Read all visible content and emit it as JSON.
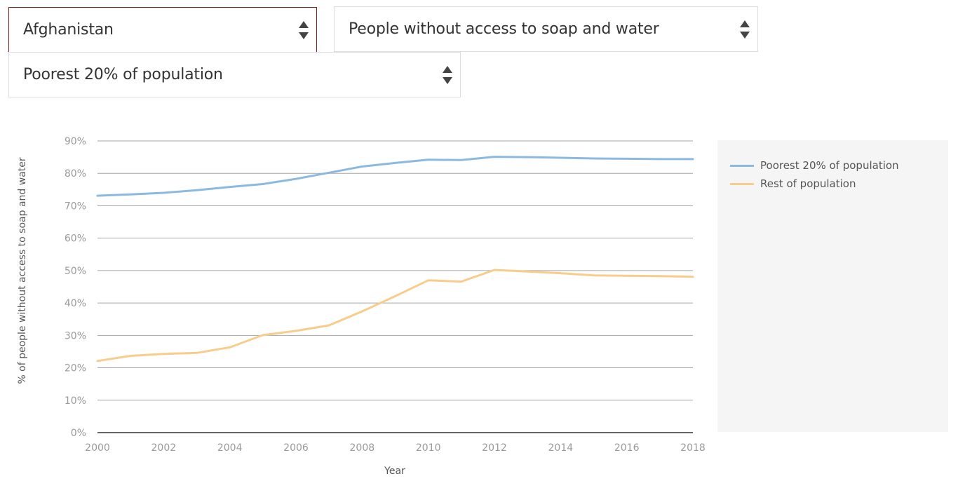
{
  "filters": {
    "country": "Afghanistan",
    "indicator": "People without access to soap and water",
    "group": "Poorest 20% of population"
  },
  "colors": {
    "active_border": "#8b1a1a",
    "series_poorest": "#8cb9e0",
    "series_rest": "#f8cd8c",
    "grid": "#a6a6a6",
    "axis": "#333333",
    "tick_text": "#9a9a9a",
    "legend_bg": "#f5f5f5"
  },
  "icons": {
    "select_arrow": "updown-arrows-icon"
  },
  "chart_data": {
    "type": "line",
    "title": "",
    "xlabel": "Year",
    "ylabel": "% of people without access to soap and water",
    "xlim": [
      2000,
      2018
    ],
    "ylim": [
      0,
      90
    ],
    "grid": true,
    "legend_placement": "right",
    "x_ticks": [
      "2000",
      "2002",
      "2004",
      "2006",
      "2008",
      "2010",
      "2012",
      "2014",
      "2016",
      "2018"
    ],
    "y_ticks": [
      "0%",
      "10%",
      "20%",
      "30%",
      "40%",
      "50%",
      "60%",
      "70%",
      "80%",
      "90%"
    ],
    "x": [
      2000,
      2001,
      2002,
      2003,
      2004,
      2005,
      2006,
      2007,
      2008,
      2009,
      2010,
      2011,
      2012,
      2013,
      2014,
      2015,
      2016,
      2017,
      2018
    ],
    "series": [
      {
        "name": "Poorest 20% of population",
        "color": "#8cb9e0",
        "values": [
          73.1,
          73.5,
          74.0,
          74.8,
          75.8,
          76.7,
          78.3,
          80.2,
          82.1,
          83.2,
          84.2,
          84.1,
          85.1,
          85.0,
          84.8,
          84.6,
          84.5,
          84.4,
          84.4
        ]
      },
      {
        "name": "Rest of population",
        "color": "#f8cd8c",
        "values": [
          22.1,
          23.7,
          24.3,
          24.6,
          26.3,
          30.1,
          31.4,
          33.1,
          37.4,
          42.1,
          47.0,
          46.6,
          50.2,
          49.7,
          49.2,
          48.5,
          48.4,
          48.3,
          48.1
        ]
      }
    ]
  }
}
